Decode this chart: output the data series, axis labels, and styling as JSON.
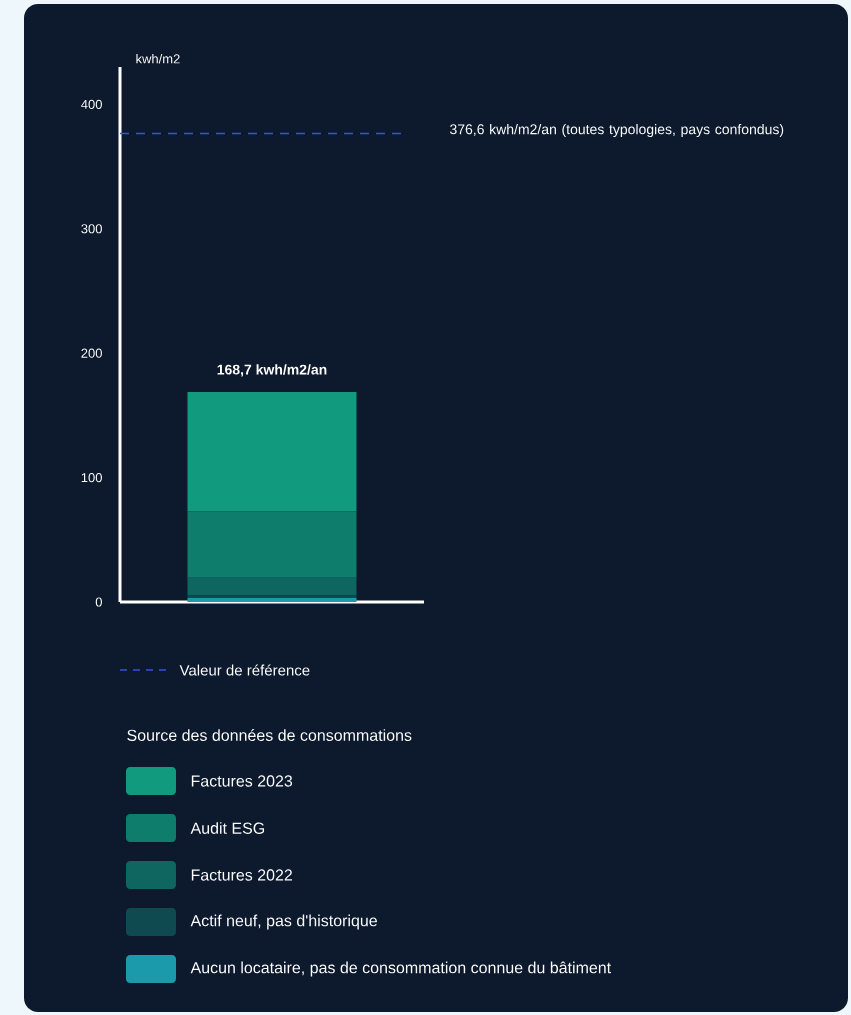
{
  "chart_data": {
    "type": "bar",
    "stacked": true,
    "ylabel": "kwh/m2",
    "legend_title": "Source des données de consommations",
    "categories": [
      null
    ],
    "series": [
      {
        "name": "Aucun locataire, pas de consommation connue du bâtiment",
        "color": "#1a9aaa",
        "values": [
          3.3
        ]
      },
      {
        "name": "Actif neuf, pas d'historique",
        "color": "#0f4a50",
        "values": [
          2.1
        ]
      },
      {
        "name": "Factures 2022",
        "color": "#0f6560",
        "values": [
          14.0
        ]
      },
      {
        "name": "Audit ESG",
        "color": "#0f7d6c",
        "values": [
          53.3
        ]
      },
      {
        "name": "Factures 2023",
        "color": "#119a7e",
        "values": [
          96.0
        ]
      }
    ],
    "totals": [
      "168,7 kwh/m2/an"
    ],
    "ylim": [
      0,
      430
    ],
    "yticks": [
      0,
      100,
      200,
      300,
      400
    ],
    "grid": false,
    "legend": "bottom",
    "ref_lines": [
      {
        "axis": "y",
        "value": 376.6,
        "label": "Valeur de référence",
        "color": "#3a4fe0",
        "line_style": "dashed"
      }
    ],
    "annotations": [
      "376,6 kwh/m2/an (toutes typologies, pays confondus)"
    ]
  }
}
